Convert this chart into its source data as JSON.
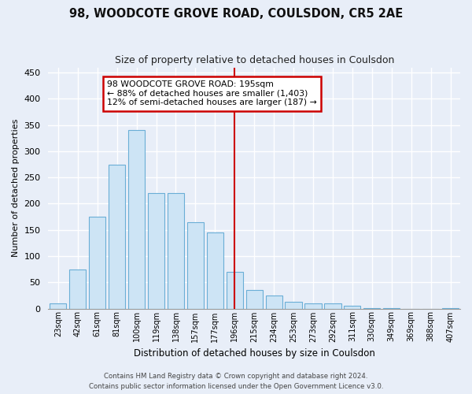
{
  "title": "98, WOODCOTE GROVE ROAD, COULSDON, CR5 2AE",
  "subtitle": "Size of property relative to detached houses in Coulsdon",
  "xlabel": "Distribution of detached houses by size in Coulsdon",
  "ylabel": "Number of detached properties",
  "categories": [
    "23sqm",
    "42sqm",
    "61sqm",
    "81sqm",
    "100sqm",
    "119sqm",
    "138sqm",
    "157sqm",
    "177sqm",
    "196sqm",
    "215sqm",
    "234sqm",
    "253sqm",
    "273sqm",
    "292sqm",
    "311sqm",
    "330sqm",
    "349sqm",
    "369sqm",
    "388sqm",
    "407sqm"
  ],
  "values": [
    10,
    75,
    175,
    275,
    340,
    220,
    220,
    165,
    145,
    70,
    35,
    25,
    13,
    10,
    10,
    5,
    1,
    1,
    0,
    0,
    1
  ],
  "bar_color": "#cde4f5",
  "bar_edge_color": "#6aaed6",
  "annotation_line1": "98 WOODCOTE GROVE ROAD: 195sqm",
  "annotation_line2": "← 88% of detached houses are smaller (1,403)",
  "annotation_line3": "12% of semi-detached houses are larger (187) →",
  "annotation_box_color": "#cc0000",
  "vline_color": "#cc0000",
  "ylim": [
    0,
    460
  ],
  "yticks": [
    0,
    50,
    100,
    150,
    200,
    250,
    300,
    350,
    400,
    450
  ],
  "footnote1": "Contains HM Land Registry data © Crown copyright and database right 2024.",
  "footnote2": "Contains public sector information licensed under the Open Government Licence v3.0.",
  "background_color": "#e8eef8",
  "grid_color": "#ffffff",
  "title_fontsize": 10.5,
  "subtitle_fontsize": 9
}
